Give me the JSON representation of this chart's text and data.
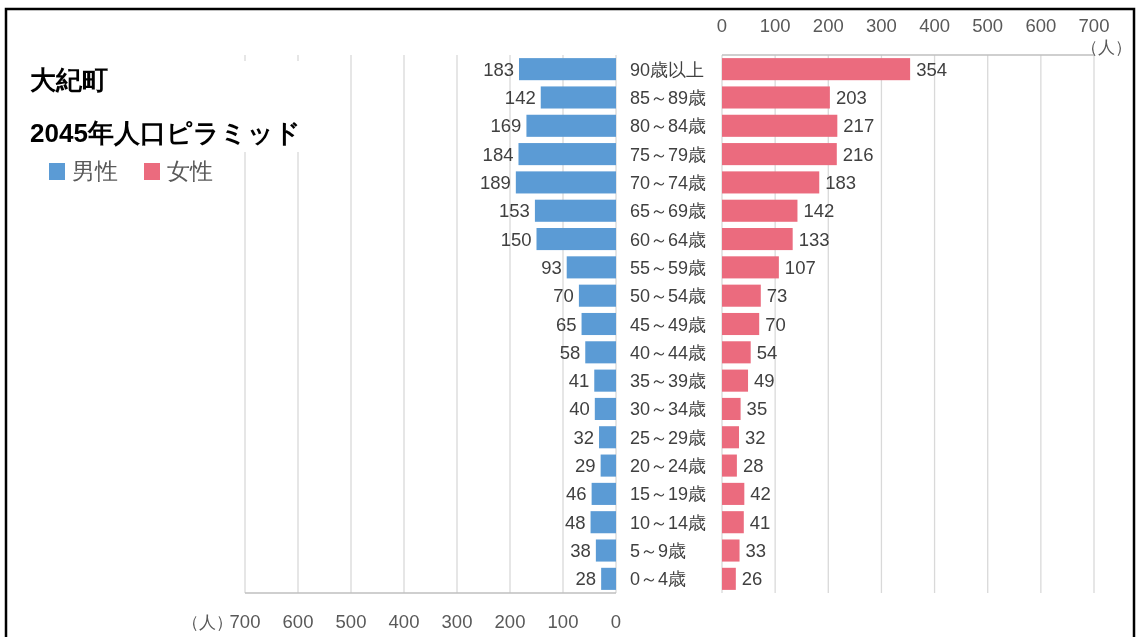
{
  "chart_data": [
    {
      "type": "bar",
      "orientation": "horizontal",
      "title": "大紀町",
      "subtitle": "2045年人口ピラミッド",
      "categories": [
        null,
        null,
        null,
        null,
        null,
        null,
        null,
        null,
        null,
        null,
        null,
        null,
        null,
        null,
        null,
        null,
        null,
        null,
        null
      ],
      "series": [
        {
          "name": "男性",
          "color": "#5b9bd5",
          "values": [
            183,
            142,
            169,
            184,
            189,
            153,
            150,
            93,
            70,
            65,
            58,
            41,
            40,
            32,
            29,
            46,
            48,
            38,
            28
          ]
        }
      ],
      "xlim": [
        700,
        0
      ],
      "xticks": [
        700,
        600,
        500,
        400,
        300,
        200,
        100,
        0
      ],
      "xlabel": "（人）",
      "grid": "x",
      "legend": "top left",
      "data_labels": true
    },
    {
      "type": "bar",
      "orientation": "horizontal",
      "categories": [
        "90歳以上",
        "85～89歳",
        "80～84歳",
        "75～79歳",
        "70～74歳",
        "65～69歳",
        "60～64歳",
        "55～59歳",
        "50～54歳",
        "45～49歳",
        "40～44歳",
        "35～39歳",
        "30～34歳",
        "25～29歳",
        "20～24歳",
        "15～19歳",
        "10～14歳",
        "5～9歳",
        "0～4歳"
      ],
      "series": [
        {
          "name": "女性",
          "color": "#eb6b7e",
          "values": [
            354,
            203,
            217,
            216,
            183,
            142,
            133,
            107,
            73,
            70,
            54,
            49,
            35,
            32,
            28,
            42,
            41,
            33,
            26
          ]
        }
      ],
      "xlim": [
        0,
        700
      ],
      "xticks": [
        0,
        100,
        200,
        300,
        400,
        500,
        600,
        700
      ],
      "xlabel": "（人）",
      "grid": "x",
      "data_labels": true
    }
  ]
}
